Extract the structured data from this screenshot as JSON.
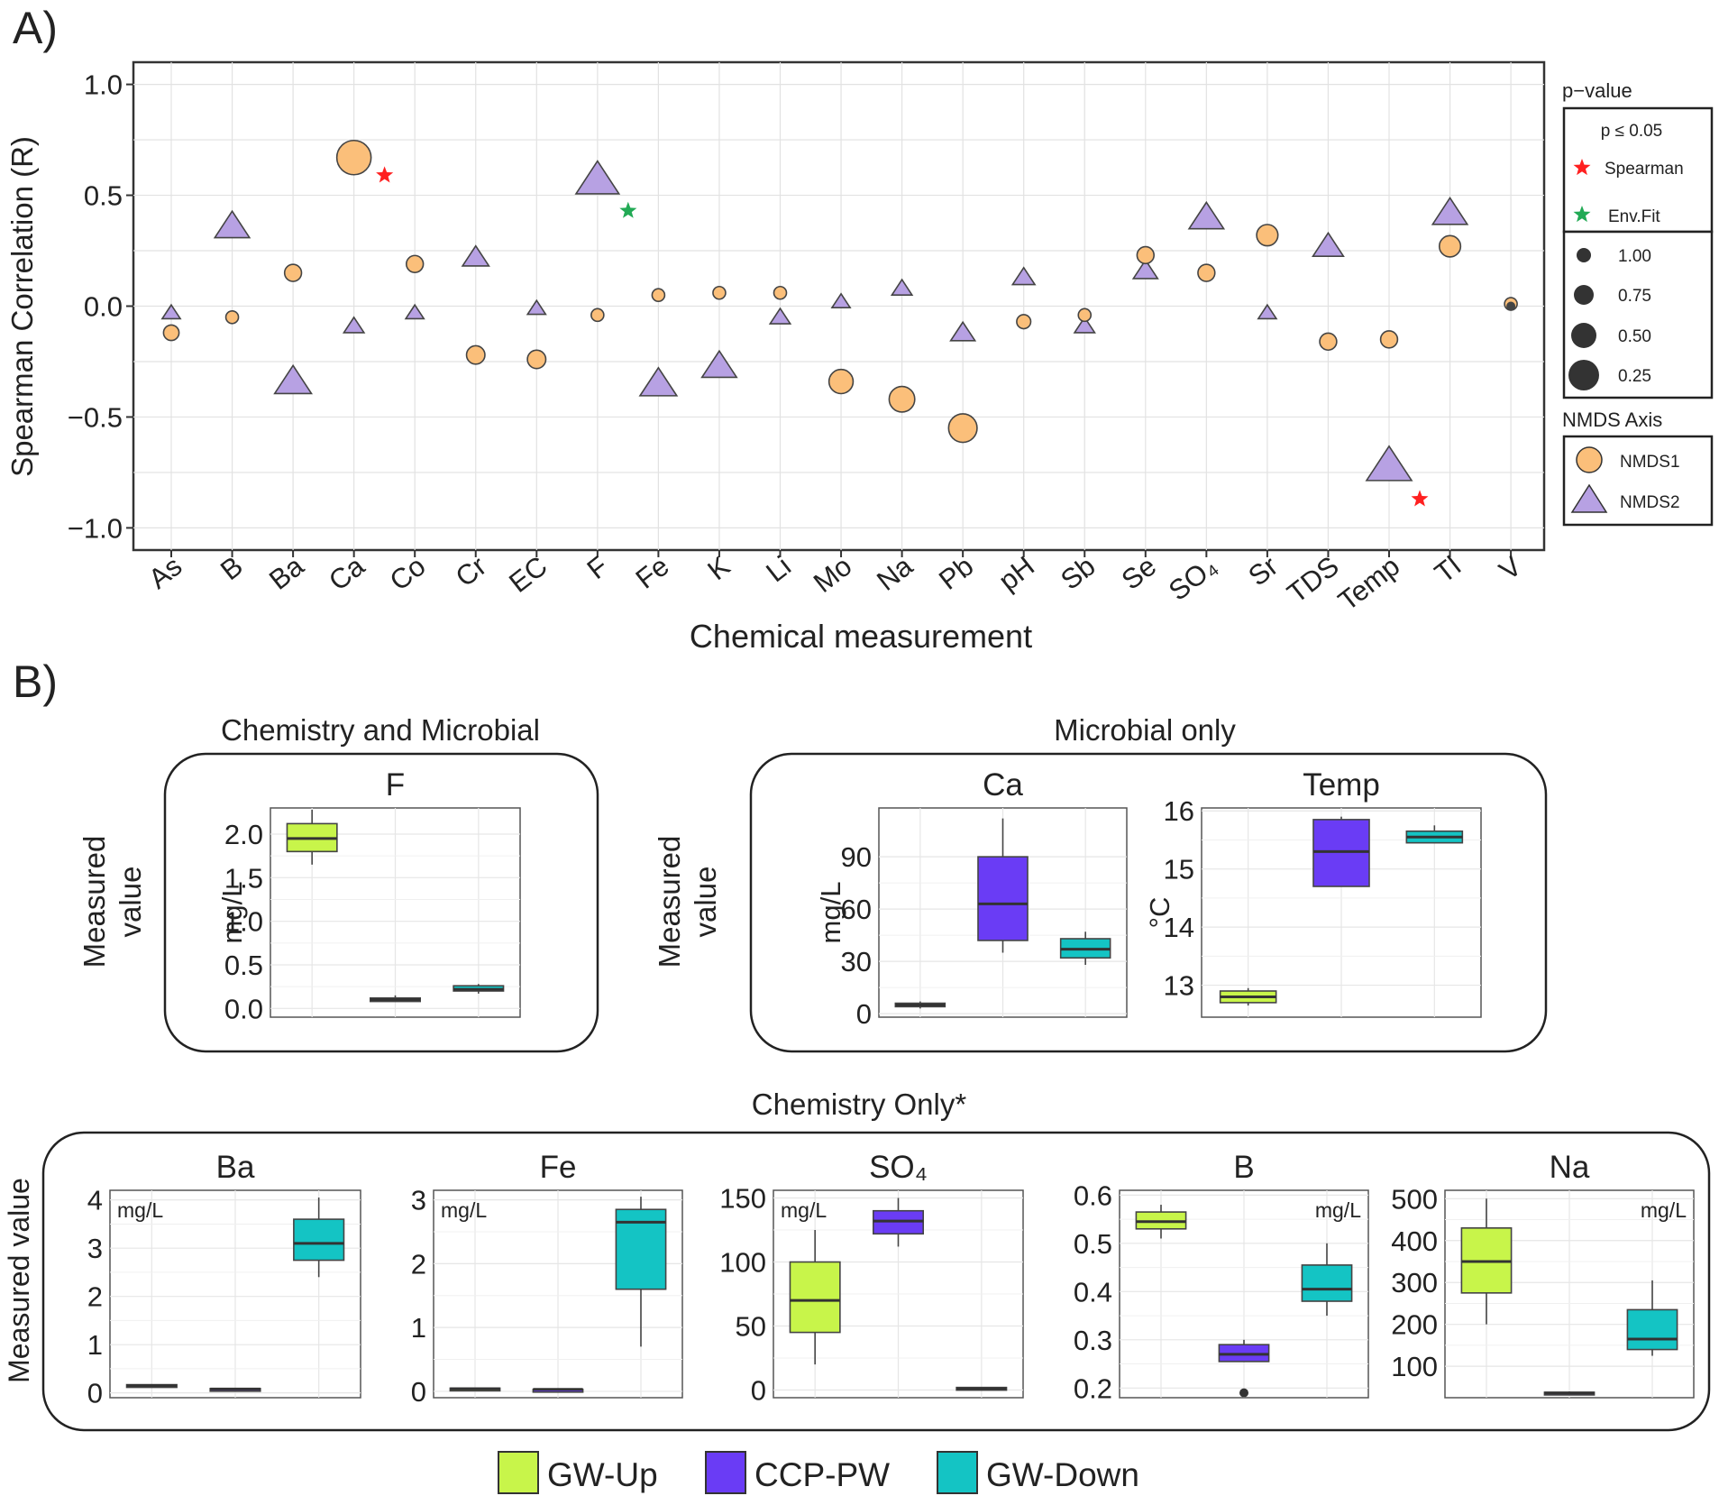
{
  "panel_a": {
    "label": "A)",
    "legend": {
      "pvalue_title": "p−value",
      "pvalue_header": "p ≤ 0.05",
      "spearman_label": "Spearman",
      "envfit_label": "Env.Fit",
      "spearman_color": "#ff2020",
      "envfit_color": "#22aa55",
      "size_values": [
        "1.00",
        "0.75",
        "0.50",
        "0.25"
      ],
      "axis_title": "NMDS Axis",
      "nmds1_label": "NMDS1",
      "nmds2_label": "NMDS2"
    }
  },
  "panel_b": {
    "label": "B)",
    "group1_title": "Chemistry and Microbial",
    "group2_title": "Microbial only",
    "group3_title": "Chemistry Only*",
    "ylabel_line1": "Measured",
    "ylabel_line2": "value",
    "ylabel_single": "Measured value"
  },
  "colors": {
    "nmds1": "#fbbf7a",
    "nmds2": "#b7a1e3",
    "gw_up": "#c8f54a",
    "ccp_pw": "#6a3cf5",
    "gw_down": "#14c4c4"
  },
  "legend_bottom": [
    {
      "label": "GW-Up",
      "color": "#c8f54a"
    },
    {
      "label": "CCP-PW",
      "color": "#6a3cf5"
    },
    {
      "label": "GW-Down",
      "color": "#14c4c4"
    }
  ],
  "chart_data": [
    {
      "type": "scatter",
      "title": "",
      "xlabel": "Chemical measurement",
      "ylabel": "Spearman Correlation (R)",
      "ylim": [
        -1.1,
        1.1
      ],
      "yticks": [
        "1.0",
        "0.5",
        "0.0",
        "−0.5",
        "−1.0"
      ],
      "categories": [
        "As",
        "B",
        "Ba",
        "Ca",
        "Co",
        "Cr",
        "EC",
        "F",
        "Fe",
        "K",
        "Li",
        "Mo",
        "Na",
        "Pb",
        "pH",
        "Sb",
        "Se",
        "SO₄",
        "Sr",
        "TDS",
        "Temp",
        "Tl",
        "V"
      ],
      "series": [
        {
          "name": "NMDS1",
          "marker": "circle",
          "values": [
            -0.12,
            -0.05,
            0.15,
            0.67,
            0.19,
            -0.22,
            -0.24,
            -0.04,
            0.05,
            0.06,
            0.06,
            null,
            -0.42,
            -0.55,
            -0.07,
            -0.04,
            0.23,
            0.15,
            0.32,
            -0.16,
            -0.15,
            0.27,
            0.01
          ],
          "p_values": [
            0.9,
            1.0,
            0.85,
            0.25,
            0.85,
            0.8,
            0.8,
            1.0,
            1.0,
            1.0,
            1.0,
            null,
            0.55,
            0.45,
            0.95,
            1.0,
            0.85,
            0.85,
            0.7,
            0.85,
            0.85,
            0.7,
            1.0
          ],
          "extra_points": [
            {
              "category": "Mo",
              "value": -0.34,
              "p": 0.6
            }
          ]
        },
        {
          "name": "NMDS2",
          "marker": "triangle",
          "values": [
            -0.03,
            0.36,
            -0.34,
            -0.09,
            -0.03,
            0.22,
            -0.01,
            0.57,
            -0.35,
            -0.27,
            -0.05,
            0.02,
            0.08,
            -0.12,
            0.13,
            -0.09,
            0.16,
            0.4,
            -0.03,
            0.27,
            -0.72,
            0.42,
            null
          ],
          "p_values": [
            1.0,
            0.6,
            0.55,
            0.95,
            1.0,
            0.8,
            1.0,
            0.4,
            0.55,
            0.6,
            0.95,
            1.0,
            0.95,
            0.85,
            0.9,
            0.95,
            0.85,
            0.6,
            1.0,
            0.7,
            0.35,
            0.6,
            null
          ]
        }
      ],
      "annotations": [
        {
          "category": "Ca",
          "value": 0.59,
          "type": "Spearman"
        },
        {
          "category": "F",
          "value": 0.43,
          "type": "Env.Fit"
        },
        {
          "category": "Temp",
          "value": -0.87,
          "type": "Spearman"
        }
      ]
    },
    {
      "type": "box",
      "title": "F",
      "ylabel": "mg/L",
      "ylim": [
        -0.1,
        2.3
      ],
      "ticks": [
        0.0,
        0.5,
        1.0,
        1.5,
        2.0
      ],
      "tick_labels": [
        "0.0",
        "0.5",
        "1.0",
        "1.5",
        "2.0"
      ],
      "groups": [
        "GW-Up",
        "CCP-PW",
        "GW-Down"
      ],
      "boxes": [
        {
          "min": 1.65,
          "q1": 1.8,
          "median": 1.95,
          "q3": 2.12,
          "max": 2.28
        },
        {
          "min": 0.08,
          "q1": 0.08,
          "median": 0.1,
          "q3": 0.12,
          "max": 0.15
        },
        {
          "min": 0.17,
          "q1": 0.2,
          "median": 0.22,
          "q3": 0.26,
          "max": 0.28
        }
      ]
    },
    {
      "type": "box",
      "title": "Ca",
      "ylabel": "mg/L",
      "ylim": [
        -2,
        118
      ],
      "ticks": [
        0,
        30,
        60,
        90
      ],
      "tick_labels": [
        "0",
        "30",
        "60",
        "90"
      ],
      "groups": [
        "GW-Up",
        "CCP-PW",
        "GW-Down"
      ],
      "boxes": [
        {
          "min": 3,
          "q1": 4,
          "median": 5,
          "q3": 6,
          "max": 7
        },
        {
          "min": 35,
          "q1": 42,
          "median": 63,
          "q3": 90,
          "max": 112
        },
        {
          "min": 28,
          "q1": 32,
          "median": 37,
          "q3": 43,
          "max": 47
        }
      ]
    },
    {
      "type": "box",
      "title": "Temp",
      "ylabel": "°C",
      "ylim": [
        12.45,
        16.05
      ],
      "ticks": [
        13,
        14,
        15,
        16
      ],
      "tick_labels": [
        "13",
        "14",
        "15",
        "16"
      ],
      "groups": [
        "GW-Up",
        "CCP-PW",
        "GW-Down"
      ],
      "boxes": [
        {
          "min": 12.65,
          "q1": 12.7,
          "median": 12.8,
          "q3": 12.9,
          "max": 12.95
        },
        {
          "min": 14.7,
          "q1": 14.7,
          "median": 15.3,
          "q3": 15.85,
          "max": 15.9
        },
        {
          "min": 15.45,
          "q1": 15.45,
          "median": 15.55,
          "q3": 15.65,
          "max": 15.75
        }
      ]
    },
    {
      "type": "box",
      "title": "Ba",
      "ylabel": "mg/L",
      "ylim": [
        -0.1,
        4.2
      ],
      "ticks": [
        0,
        1,
        2,
        3,
        4
      ],
      "tick_labels": [
        "0",
        "1",
        "2",
        "3",
        "4"
      ],
      "groups": [
        "GW-Up",
        "CCP-PW",
        "GW-Down"
      ],
      "boxes": [
        {
          "min": 0.12,
          "q1": 0.13,
          "median": 0.15,
          "q3": 0.17,
          "max": 0.18
        },
        {
          "min": 0.06,
          "q1": 0.07,
          "median": 0.08,
          "q3": 0.09,
          "max": 0.1
        },
        {
          "min": 2.4,
          "q1": 2.75,
          "median": 3.1,
          "q3": 3.6,
          "max": 4.05
        }
      ]
    },
    {
      "type": "box",
      "title": "Fe",
      "ylabel": "mg/L",
      "ylim": [
        -0.1,
        3.15
      ],
      "ticks": [
        0,
        1,
        2,
        3
      ],
      "tick_labels": [
        "0",
        "1",
        "2",
        "3"
      ],
      "groups": [
        "GW-Up",
        "CCP-PW",
        "GW-Down"
      ],
      "boxes": [
        {
          "min": 0.03,
          "q1": 0.03,
          "median": 0.04,
          "q3": 0.05,
          "max": 0.05
        },
        {
          "min": 0.02,
          "q1": 0.02,
          "median": 0.03,
          "q3": 0.03,
          "max": 0.04
        },
        {
          "min": 0.7,
          "q1": 1.6,
          "median": 2.65,
          "q3": 2.85,
          "max": 3.05
        }
      ]
    },
    {
      "type": "box",
      "title": "SO₄",
      "ylabel": "mg/L",
      "ylim": [
        -6,
        156
      ],
      "ticks": [
        0,
        50,
        100,
        150
      ],
      "tick_labels": [
        "0",
        "50",
        "100",
        "150"
      ],
      "groups": [
        "GW-Up",
        "CCP-PW",
        "GW-Down"
      ],
      "boxes": [
        {
          "min": 20,
          "q1": 45,
          "median": 70,
          "q3": 100,
          "max": 125
        },
        {
          "min": 112,
          "q1": 122,
          "median": 132,
          "q3": 140,
          "max": 150
        },
        {
          "min": 0,
          "q1": 0,
          "median": 1,
          "q3": 2,
          "max": 2
        }
      ]
    },
    {
      "type": "box",
      "title": "B",
      "ylabel": "mg/L",
      "ylim": [
        0.18,
        0.61
      ],
      "ticks": [
        0.2,
        0.3,
        0.4,
        0.5,
        0.6
      ],
      "tick_labels": [
        "0.2",
        "0.3",
        "0.4",
        "0.5",
        "0.6"
      ],
      "groups": [
        "GW-Up",
        "CCP-PW",
        "GW-Down"
      ],
      "boxes": [
        {
          "min": 0.51,
          "q1": 0.53,
          "median": 0.545,
          "q3": 0.565,
          "max": 0.58
        },
        {
          "min": 0.255,
          "q1": 0.255,
          "median": 0.27,
          "q3": 0.29,
          "max": 0.3,
          "outliers": [
            0.19
          ]
        },
        {
          "min": 0.35,
          "q1": 0.38,
          "median": 0.405,
          "q3": 0.455,
          "max": 0.5
        }
      ]
    },
    {
      "type": "box",
      "title": "Na",
      "ylabel": "mg/L",
      "ylim": [
        25,
        520
      ],
      "ticks": [
        100,
        200,
        300,
        400,
        500
      ],
      "tick_labels": [
        "100",
        "200",
        "300",
        "400",
        "500"
      ],
      "groups": [
        "GW-Up",
        "CCP-PW",
        "GW-Down"
      ],
      "boxes": [
        {
          "min": 200,
          "q1": 275,
          "median": 350,
          "q3": 430,
          "max": 500
        },
        {
          "min": 33,
          "q1": 34,
          "median": 36,
          "q3": 38,
          "max": 40
        },
        {
          "min": 125,
          "q1": 140,
          "median": 165,
          "q3": 235,
          "max": 305
        }
      ]
    }
  ]
}
